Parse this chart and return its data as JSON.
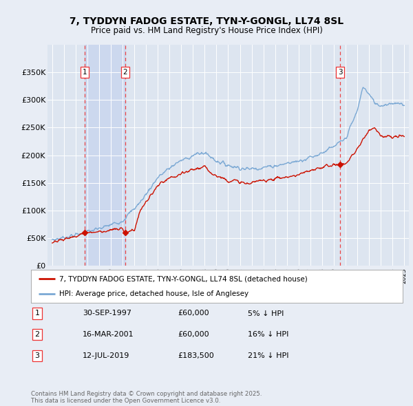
{
  "title_line1": "7, TYDDYN FADOG ESTATE, TYN-Y-GONGL, LL74 8SL",
  "title_line2": "Price paid vs. HM Land Registry's House Price Index (HPI)",
  "bg_color": "#e8edf5",
  "plot_bg_color": "#dde5f0",
  "shade_color": "#ccd8ee",
  "grid_color": "#ffffff",
  "hpi_color": "#7aa8d4",
  "price_color": "#cc1100",
  "vline_color": "#ee3333",
  "marker_color": "#cc1100",
  "purchase_markers": [
    {
      "date_num": 1997.75,
      "price": 60000,
      "label": "1"
    },
    {
      "date_num": 2001.21,
      "price": 60000,
      "label": "2"
    },
    {
      "date_num": 2019.54,
      "price": 183500,
      "label": "3"
    }
  ],
  "ylim": [
    0,
    400000
  ],
  "yticks": [
    0,
    50000,
    100000,
    150000,
    200000,
    250000,
    300000,
    350000
  ],
  "ytick_labels": [
    "£0",
    "£50K",
    "£100K",
    "£150K",
    "£200K",
    "£250K",
    "£300K",
    "£350K"
  ],
  "xlim": [
    1994.6,
    2025.4
  ],
  "legend_entry1": "7, TYDDYN FADOG ESTATE, TYN-Y-GONGL, LL74 8SL (detached house)",
  "legend_entry2": "HPI: Average price, detached house, Isle of Anglesey",
  "table_entries": [
    {
      "num": "1",
      "date": "30-SEP-1997",
      "price": "£60,000",
      "hpi": "5% ↓ HPI"
    },
    {
      "num": "2",
      "date": "16-MAR-2001",
      "price": "£60,000",
      "hpi": "16% ↓ HPI"
    },
    {
      "num": "3",
      "date": "12-JUL-2019",
      "price": "£183,500",
      "hpi": "21% ↓ HPI"
    }
  ],
  "footnote": "Contains HM Land Registry data © Crown copyright and database right 2025.\nThis data is licensed under the Open Government Licence v3.0."
}
